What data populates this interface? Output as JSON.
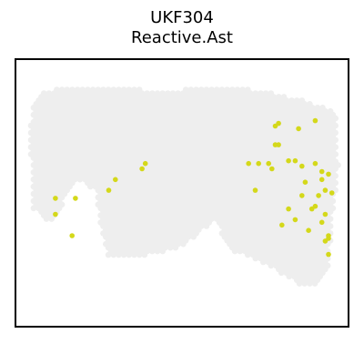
{
  "title": "UKF304",
  "subtitle": "Reactive.Ast",
  "colors": {
    "background_spots": "#eeeeee",
    "highlight_spots": "#d4d81a",
    "frame": "#000000"
  },
  "chart_data": {
    "type": "scatter",
    "title": "UKF304",
    "subtitle": "Reactive.Ast",
    "xlabel": "",
    "ylabel": "",
    "axes_visible": false,
    "grid": false,
    "xlim": [
      0,
      100
    ],
    "ylim": [
      0,
      100
    ],
    "background_tissue_shape": [
      [
        5,
        82
      ],
      [
        8,
        88
      ],
      [
        20,
        90
      ],
      [
        45,
        88
      ],
      [
        62,
        90
      ],
      [
        75,
        88
      ],
      [
        88,
        84
      ],
      [
        96,
        80
      ],
      [
        97,
        60
      ],
      [
        95,
        40
      ],
      [
        94,
        22
      ],
      [
        90,
        15
      ],
      [
        85,
        16
      ],
      [
        80,
        20
      ],
      [
        72,
        25
      ],
      [
        66,
        28
      ],
      [
        62,
        34
      ],
      [
        60,
        40
      ],
      [
        56,
        36
      ],
      [
        50,
        30
      ],
      [
        44,
        28
      ],
      [
        36,
        26
      ],
      [
        28,
        26
      ],
      [
        26,
        35
      ],
      [
        24,
        50
      ],
      [
        20,
        56
      ],
      [
        15,
        48
      ],
      [
        12,
        40
      ],
      [
        8,
        40
      ],
      [
        5,
        45
      ],
      [
        5,
        60
      ],
      [
        4,
        70
      ]
    ],
    "background_hole_shape": [
      [
        14,
        45
      ],
      [
        18,
        42
      ],
      [
        20,
        36
      ],
      [
        17,
        32
      ],
      [
        14,
        36
      ]
    ],
    "series": [
      {
        "points": [
          [
            78,
            75
          ],
          [
            79,
            76
          ],
          [
            85,
            74
          ],
          [
            90,
            77
          ],
          [
            78,
            68
          ],
          [
            79,
            68
          ],
          [
            84,
            62
          ],
          [
            82,
            62
          ],
          [
            86,
            60
          ],
          [
            90,
            61
          ],
          [
            92,
            58
          ],
          [
            94,
            57
          ],
          [
            92,
            55
          ],
          [
            93,
            51
          ],
          [
            95,
            50
          ],
          [
            91,
            49
          ],
          [
            89,
            44
          ],
          [
            90,
            45
          ],
          [
            93,
            42
          ],
          [
            92,
            39
          ],
          [
            88,
            36
          ],
          [
            94,
            33
          ],
          [
            94,
            34
          ],
          [
            93,
            32
          ],
          [
            94,
            27
          ],
          [
            84,
            40
          ],
          [
            80,
            38
          ],
          [
            82,
            44
          ],
          [
            87,
            54
          ],
          [
            86,
            49
          ],
          [
            70,
            61
          ],
          [
            73,
            61
          ],
          [
            76,
            61
          ],
          [
            77,
            59
          ],
          [
            72,
            51
          ],
          [
            38,
            59
          ],
          [
            39,
            61
          ],
          [
            30,
            55
          ],
          [
            28,
            51
          ],
          [
            12,
            48
          ],
          [
            18,
            48
          ],
          [
            12,
            42
          ],
          [
            17,
            34
          ]
        ]
      }
    ]
  }
}
